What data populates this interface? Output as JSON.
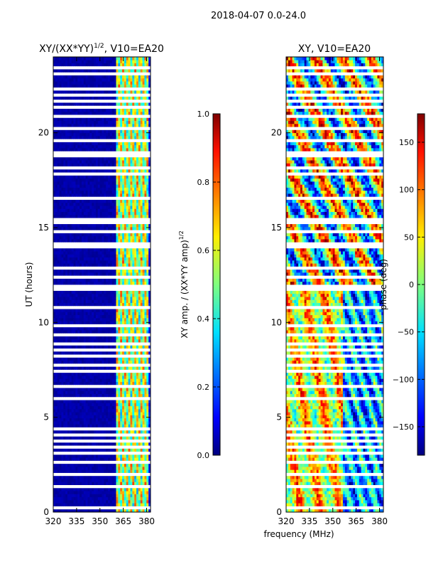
{
  "suptitle": "2018-04-07 0.0-24.0",
  "colors": {
    "jet": [
      "#00007f",
      "#0000ff",
      "#007fff",
      "#00ffff",
      "#7fff7f",
      "#ffff00",
      "#ff7f00",
      "#ff0000",
      "#7f0000"
    ],
    "gap": "#ffffff"
  },
  "chart_data": [
    {
      "type": "heatmap",
      "title": "XY/(XX*YY)",
      "title_sup": "1/2",
      "title_suffix": ", V10=EA20",
      "xlabel": "",
      "ylabel": "UT (hours)",
      "xlim": [
        320,
        382.5
      ],
      "ylim": [
        0,
        24
      ],
      "xticks": [
        320,
        335,
        350,
        365,
        380
      ],
      "yticks": [
        0,
        5,
        10,
        15,
        20
      ],
      "colorbar": {
        "label": "XY amp. / (XX*YY amp)",
        "label_sup": "1/2",
        "range": [
          0.0,
          1.0
        ],
        "ticks": [
          "0.0",
          "0.2",
          "0.4",
          "0.6",
          "0.8",
          "1.0"
        ]
      },
      "description_bands": {
        "low_freq_region_MHz": [
          320,
          361
        ],
        "active_region_MHz": [
          361,
          381
        ],
        "low_value": 0.02,
        "active_value_range": [
          0.35,
          0.75
        ]
      }
    },
    {
      "type": "heatmap",
      "title": "XY, V10=EA20",
      "xlabel": "frequency (MHz)",
      "ylabel": "",
      "xlim": [
        320,
        382.5
      ],
      "ylim": [
        0,
        24
      ],
      "xticks": [
        320,
        335,
        350,
        365,
        380
      ],
      "yticks": [
        0,
        5,
        10,
        15,
        20
      ],
      "colorbar": {
        "label": "phase (deg)",
        "range": [
          -180,
          180
        ],
        "ticks": [
          "150",
          "100",
          "50",
          "0",
          "−50",
          "−100",
          "−150"
        ]
      },
      "gap_rows_UT": [
        0.3,
        1.4,
        2.0,
        2.7,
        3.1,
        3.4,
        3.7,
        4.1,
        4.4,
        6.0,
        6.7,
        7.5,
        7.8,
        8.2,
        8.5,
        8.8,
        9.4,
        9.8,
        10.8,
        11.8,
        11.9,
        12.4,
        12.8,
        14.0,
        14.2,
        14.8,
        15.3,
        15.5,
        16.5,
        17.8,
        18.2,
        18.8,
        18.9,
        19.2,
        19.6,
        20.2,
        20.9,
        21.4,
        21.7,
        22.0,
        22.3,
        23.2,
        23.5
      ]
    }
  ]
}
